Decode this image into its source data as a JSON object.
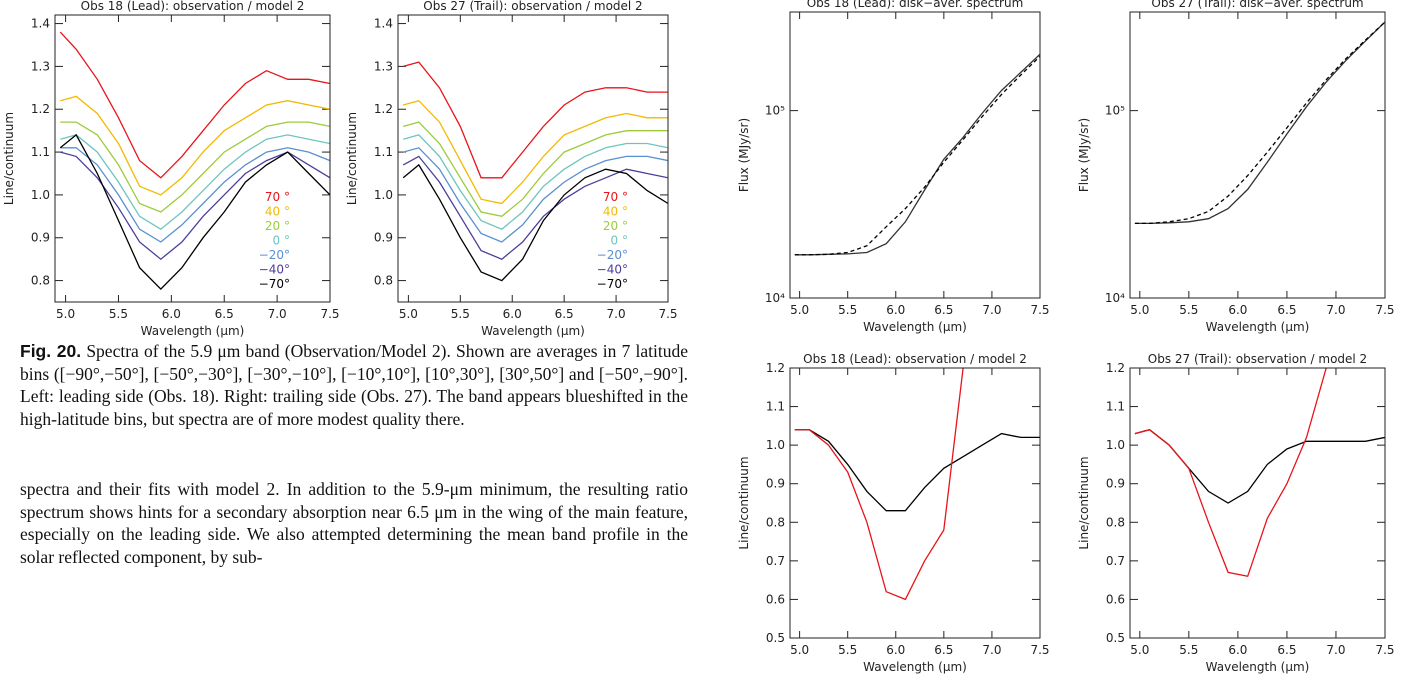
{
  "chart_data": [
    {
      "type": "line",
      "title": "Obs 18 (Lead): observation / model 2",
      "xlabel": "Wavelength (μm)",
      "ylabel": "Line/continuum",
      "x": [
        4.95,
        5.1,
        5.3,
        5.5,
        5.7,
        5.9,
        6.1,
        6.3,
        6.5,
        6.7,
        6.9,
        7.1,
        7.3,
        7.5
      ],
      "xlim": [
        4.9,
        7.5
      ],
      "ylim": [
        0.75,
        1.42
      ],
      "legend": "lower right",
      "xticks": [
        {
          "value": 5,
          "label": "5.0"
        },
        5.5,
        {
          "value": 6,
          "label": "6.0"
        },
        6.5,
        {
          "value": 7,
          "label": "7.0"
        },
        7.5
      ],
      "yticks": [
        0.8,
        0.9,
        {
          "value": 1,
          "label": "1.0"
        },
        1.1,
        1.2,
        1.3,
        1.4
      ],
      "series": [
        {
          "name": "70 °",
          "color": "#e8141a",
          "values": [
            1.38,
            1.34,
            1.27,
            1.18,
            1.08,
            1.04,
            1.09,
            1.15,
            1.21,
            1.26,
            1.29,
            1.27,
            1.27,
            1.26
          ]
        },
        {
          "name": "40 °",
          "color": "#f2b900",
          "values": [
            1.22,
            1.23,
            1.19,
            1.12,
            1.02,
            1.0,
            1.04,
            1.1,
            1.15,
            1.18,
            1.21,
            1.22,
            1.21,
            1.2
          ]
        },
        {
          "name": "20 °",
          "color": "#9ccb3c",
          "values": [
            1.17,
            1.17,
            1.14,
            1.07,
            0.98,
            0.96,
            1.0,
            1.05,
            1.1,
            1.13,
            1.16,
            1.17,
            1.17,
            1.16
          ]
        },
        {
          "name": "0 °",
          "color": "#6cc6bd",
          "values": [
            1.13,
            1.14,
            1.1,
            1.03,
            0.95,
            0.92,
            0.96,
            1.01,
            1.06,
            1.1,
            1.13,
            1.14,
            1.13,
            1.12
          ]
        },
        {
          "name": "−20°",
          "color": "#5a8fd2",
          "values": [
            1.11,
            1.11,
            1.07,
            1.0,
            0.92,
            0.89,
            0.93,
            0.98,
            1.03,
            1.07,
            1.1,
            1.11,
            1.1,
            1.08
          ]
        },
        {
          "name": "−40°",
          "color": "#4b3f9c",
          "values": [
            1.1,
            1.09,
            1.04,
            0.97,
            0.89,
            0.85,
            0.89,
            0.95,
            1.0,
            1.05,
            1.08,
            1.1,
            1.07,
            1.04
          ]
        },
        {
          "name": "−70°",
          "color": "#000000",
          "values": [
            1.11,
            1.14,
            1.05,
            0.94,
            0.83,
            0.78,
            0.83,
            0.9,
            0.96,
            1.03,
            1.07,
            1.1,
            1.05,
            1.0
          ]
        }
      ]
    },
    {
      "type": "line",
      "title": "Obs 27 (Trail): observation / model 2",
      "xlabel": "Wavelength (μm)",
      "ylabel": "Line/continuum",
      "x": [
        4.95,
        5.1,
        5.3,
        5.5,
        5.7,
        5.9,
        6.1,
        6.3,
        6.5,
        6.7,
        6.9,
        7.1,
        7.3,
        7.5
      ],
      "xlim": [
        4.9,
        7.5
      ],
      "ylim": [
        0.75,
        1.42
      ],
      "legend": "lower right",
      "xticks": [
        {
          "value": 5,
          "label": "5.0"
        },
        5.5,
        {
          "value": 6,
          "label": "6.0"
        },
        6.5,
        {
          "value": 7,
          "label": "7.0"
        },
        7.5
      ],
      "yticks": [
        0.8,
        0.9,
        {
          "value": 1,
          "label": "1.0"
        },
        1.1,
        1.2,
        1.3,
        1.4
      ],
      "series": [
        {
          "name": "70 °",
          "color": "#e8141a",
          "values": [
            1.3,
            1.31,
            1.25,
            1.16,
            1.04,
            1.04,
            1.1,
            1.16,
            1.21,
            1.24,
            1.25,
            1.25,
            1.24,
            1.24
          ]
        },
        {
          "name": "40 °",
          "color": "#f2b900",
          "values": [
            1.21,
            1.22,
            1.17,
            1.08,
            0.99,
            0.98,
            1.03,
            1.09,
            1.14,
            1.16,
            1.18,
            1.19,
            1.18,
            1.18
          ]
        },
        {
          "name": "20 °",
          "color": "#9ccb3c",
          "values": [
            1.16,
            1.17,
            1.12,
            1.04,
            0.96,
            0.95,
            0.99,
            1.05,
            1.1,
            1.12,
            1.14,
            1.15,
            1.15,
            1.15
          ]
        },
        {
          "name": "0 °",
          "color": "#6cc6bd",
          "values": [
            1.13,
            1.14,
            1.09,
            1.01,
            0.94,
            0.92,
            0.96,
            1.02,
            1.06,
            1.09,
            1.11,
            1.12,
            1.12,
            1.11
          ]
        },
        {
          "name": "−20°",
          "color": "#5a8fd2",
          "values": [
            1.1,
            1.11,
            1.06,
            0.98,
            0.91,
            0.89,
            0.93,
            0.99,
            1.03,
            1.06,
            1.08,
            1.09,
            1.09,
            1.08
          ]
        },
        {
          "name": "−40°",
          "color": "#4b3f9c",
          "values": [
            1.07,
            1.09,
            1.03,
            0.95,
            0.87,
            0.85,
            0.89,
            0.95,
            0.99,
            1.02,
            1.04,
            1.06,
            1.05,
            1.04
          ]
        },
        {
          "name": "−70°",
          "color": "#000000",
          "values": [
            1.04,
            1.07,
            0.99,
            0.9,
            0.82,
            0.8,
            0.85,
            0.94,
            1.0,
            1.04,
            1.06,
            1.05,
            1.01,
            0.98
          ]
        }
      ]
    },
    {
      "type": "line",
      "title": "Obs 18 (Lead): disk−aver. spectrum",
      "xlabel": "Wavelength (μm)",
      "ylabel": "Flux (MJy/sr)",
      "log": true,
      "x": [
        4.95,
        5.1,
        5.3,
        5.5,
        5.7,
        5.9,
        6.1,
        6.3,
        6.5,
        6.7,
        6.9,
        7.1,
        7.3,
        7.5
      ],
      "xlim": [
        4.9,
        7.5
      ],
      "ylim": [
        10000,
        336000
      ],
      "xticks": [
        {
          "value": 5,
          "label": "5.0"
        },
        5.5,
        {
          "value": 6,
          "label": "6.0"
        },
        6.5,
        {
          "value": 7,
          "label": "7.0"
        },
        7.5
      ],
      "yticks": [
        {
          "value": 10000,
          "label": "10⁴"
        },
        {
          "value": 100000,
          "label": "10⁵"
        }
      ],
      "series": [
        {
          "color": "#333333",
          "style": "solid",
          "values": [
            17000,
            17000,
            17100,
            17200,
            17500,
            19500,
            25500,
            37700,
            55000,
            72000,
            97000,
            128000,
            160000,
            200000
          ]
        },
        {
          "color": "#000000",
          "style": "dashed",
          "values": [
            17000,
            17000,
            17100,
            17500,
            19000,
            24000,
            30000,
            39000,
            53000,
            70000,
            93000,
            122000,
            155000,
            195000
          ]
        }
      ]
    },
    {
      "type": "line",
      "title": "Obs 27 (Trail): disk−aver. spectrum",
      "xlabel": "Wavelength (μm)",
      "ylabel": "Flux (MJy/sr)",
      "log": true,
      "x": [
        4.95,
        5.1,
        5.3,
        5.5,
        5.7,
        5.9,
        6.1,
        6.3,
        6.5,
        6.7,
        6.9,
        7.1,
        7.3,
        7.5
      ],
      "xlim": [
        4.9,
        7.5
      ],
      "ylim": [
        10000,
        336000
      ],
      "xticks": [
        {
          "value": 5,
          "label": "5.0"
        },
        5.5,
        {
          "value": 6,
          "label": "6.0"
        },
        6.5,
        {
          "value": 7,
          "label": "7.0"
        },
        7.5
      ],
      "yticks": [
        {
          "value": 10000,
          "label": "10⁴"
        },
        {
          "value": 100000,
          "label": "10⁵"
        }
      ],
      "series": [
        {
          "color": "#333333",
          "style": "solid",
          "values": [
            25000,
            25000,
            25200,
            25500,
            26500,
            30000,
            38000,
            53000,
            75000,
            105000,
            142000,
            185000,
            235000,
            297000
          ]
        },
        {
          "color": "#000000",
          "style": "dashed",
          "values": [
            25000,
            25000,
            25500,
            26500,
            29000,
            35000,
            45000,
            60000,
            81000,
            110000,
            146000,
            189000,
            238000,
            297000
          ]
        }
      ]
    },
    {
      "type": "line",
      "title": "Obs 18 (Lead): observation / model 2",
      "xlabel": "Wavelength (μm)",
      "ylabel": "Line/continuum",
      "x": [
        4.95,
        5.1,
        5.3,
        5.5,
        5.7,
        5.9,
        6.1,
        6.3,
        6.5,
        6.7,
        6.9,
        7.1,
        7.3,
        7.5
      ],
      "xlim": [
        4.9,
        7.5
      ],
      "ylim": [
        0.5,
        1.2
      ],
      "xticks": [
        {
          "value": 5,
          "label": "5.0"
        },
        5.5,
        {
          "value": 6,
          "label": "6.0"
        },
        6.5,
        {
          "value": 7,
          "label": "7.0"
        },
        7.5
      ],
      "yticks": [
        0.5,
        0.6,
        0.7,
        0.8,
        0.9,
        {
          "value": 1,
          "label": "1.0"
        },
        1.1,
        1.2
      ],
      "series": [
        {
          "color": "#000000",
          "style": "solid",
          "values": [
            1.04,
            1.04,
            1.01,
            0.95,
            0.88,
            0.83,
            0.83,
            0.89,
            0.94,
            0.97,
            1.0,
            1.03,
            1.02,
            1.02
          ]
        },
        {
          "color": "#e8141a",
          "style": "solid",
          "values": [
            1.04,
            1.04,
            1.0,
            0.93,
            0.8,
            0.62,
            0.6,
            0.7,
            0.78,
            1.2,
            null,
            null,
            null,
            null
          ]
        }
      ]
    },
    {
      "type": "line",
      "title": "Obs 27 (Trail): observation / model 2",
      "xlabel": "Wavelength (μm)",
      "ylabel": "Line/continuum",
      "x": [
        4.95,
        5.1,
        5.3,
        5.5,
        5.7,
        5.9,
        6.1,
        6.3,
        6.5,
        6.7,
        6.9,
        7.1,
        7.3,
        7.5
      ],
      "xlim": [
        4.9,
        7.5
      ],
      "ylim": [
        0.5,
        1.2
      ],
      "xticks": [
        {
          "value": 5,
          "label": "5.0"
        },
        5.5,
        {
          "value": 6,
          "label": "6.0"
        },
        6.5,
        {
          "value": 7,
          "label": "7.0"
        },
        7.5
      ],
      "yticks": [
        0.5,
        0.6,
        0.7,
        0.8,
        0.9,
        {
          "value": 1,
          "label": "1.0"
        },
        1.1,
        1.2
      ],
      "series": [
        {
          "color": "#000000",
          "style": "solid",
          "values": [
            1.03,
            1.04,
            1.0,
            0.94,
            0.88,
            0.85,
            0.88,
            0.95,
            0.99,
            1.01,
            1.01,
            1.01,
            1.01,
            1.02
          ]
        },
        {
          "color": "#e8141a",
          "style": "solid",
          "values": [
            1.03,
            1.04,
            1.0,
            0.94,
            0.8,
            0.67,
            0.66,
            0.81,
            0.9,
            1.02,
            1.2,
            null,
            null,
            null
          ]
        }
      ]
    }
  ],
  "caption": {
    "label": "Fig. 20.",
    "text": "Spectra of the 5.9 μm band (Observation/Model 2). Shown are averages in 7 latitude bins ([−90°,−50°], [−50°,−30°], [−30°,−10°], [−10°,10°], [10°,30°], [30°,50°] and [−50°,−90°]. Left: leading side (Obs. 18). Right: trailing side (Obs. 27). The band appears blueshifted in the high-latitude bins, but spectra are of more modest quality there."
  },
  "body": "spectra and their fits with model 2. In addition to the 5.9-μm minimum, the resulting ratio spectrum shows hints for a secondary absorption near 6.5 μm in the wing of the main feature, especially on the leading side. We also attempted determining the mean band profile in the solar reflected component, by sub-"
}
